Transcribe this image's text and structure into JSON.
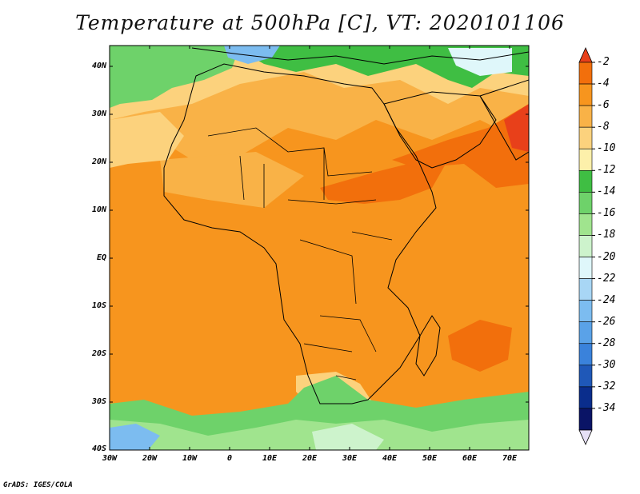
{
  "title": "Temperature at 500hPa [C], VT: 2020101106",
  "credit": "GrADS: IGES/COLA",
  "lat_labels": [
    "40N",
    "30N",
    "20N",
    "10N",
    "EQ",
    "10S",
    "20S",
    "30S",
    "40S"
  ],
  "lon_labels": [
    "30W",
    "20W",
    "10W",
    "0",
    "10E",
    "20E",
    "30E",
    "40E",
    "50E",
    "60E",
    "70E"
  ],
  "colorbar": {
    "labels": [
      "-2",
      "-4",
      "-6",
      "-8",
      "-10",
      "-12",
      "-14",
      "-16",
      "-18",
      "-20",
      "-22",
      "-24",
      "-26",
      "-28",
      "-30",
      "-32",
      "-34"
    ],
    "colors": [
      "#e8401a",
      "#f26f0c",
      "#f7951e",
      "#f9b247",
      "#fcd27d",
      "#fdf0aa",
      "#3fbe43",
      "#6ed26a",
      "#a0e48e",
      "#cdf3cc",
      "#dff7fa",
      "#a8d6f5",
      "#7cbcf0",
      "#5aa2e8",
      "#3a82db",
      "#1f58b8",
      "#0a2d8c",
      "#0a1466"
    ],
    "lower_tip_color": "#e6e0f5"
  },
  "colors": {
    "land_outline": "#000000",
    "background_field": "#f7951e"
  }
}
